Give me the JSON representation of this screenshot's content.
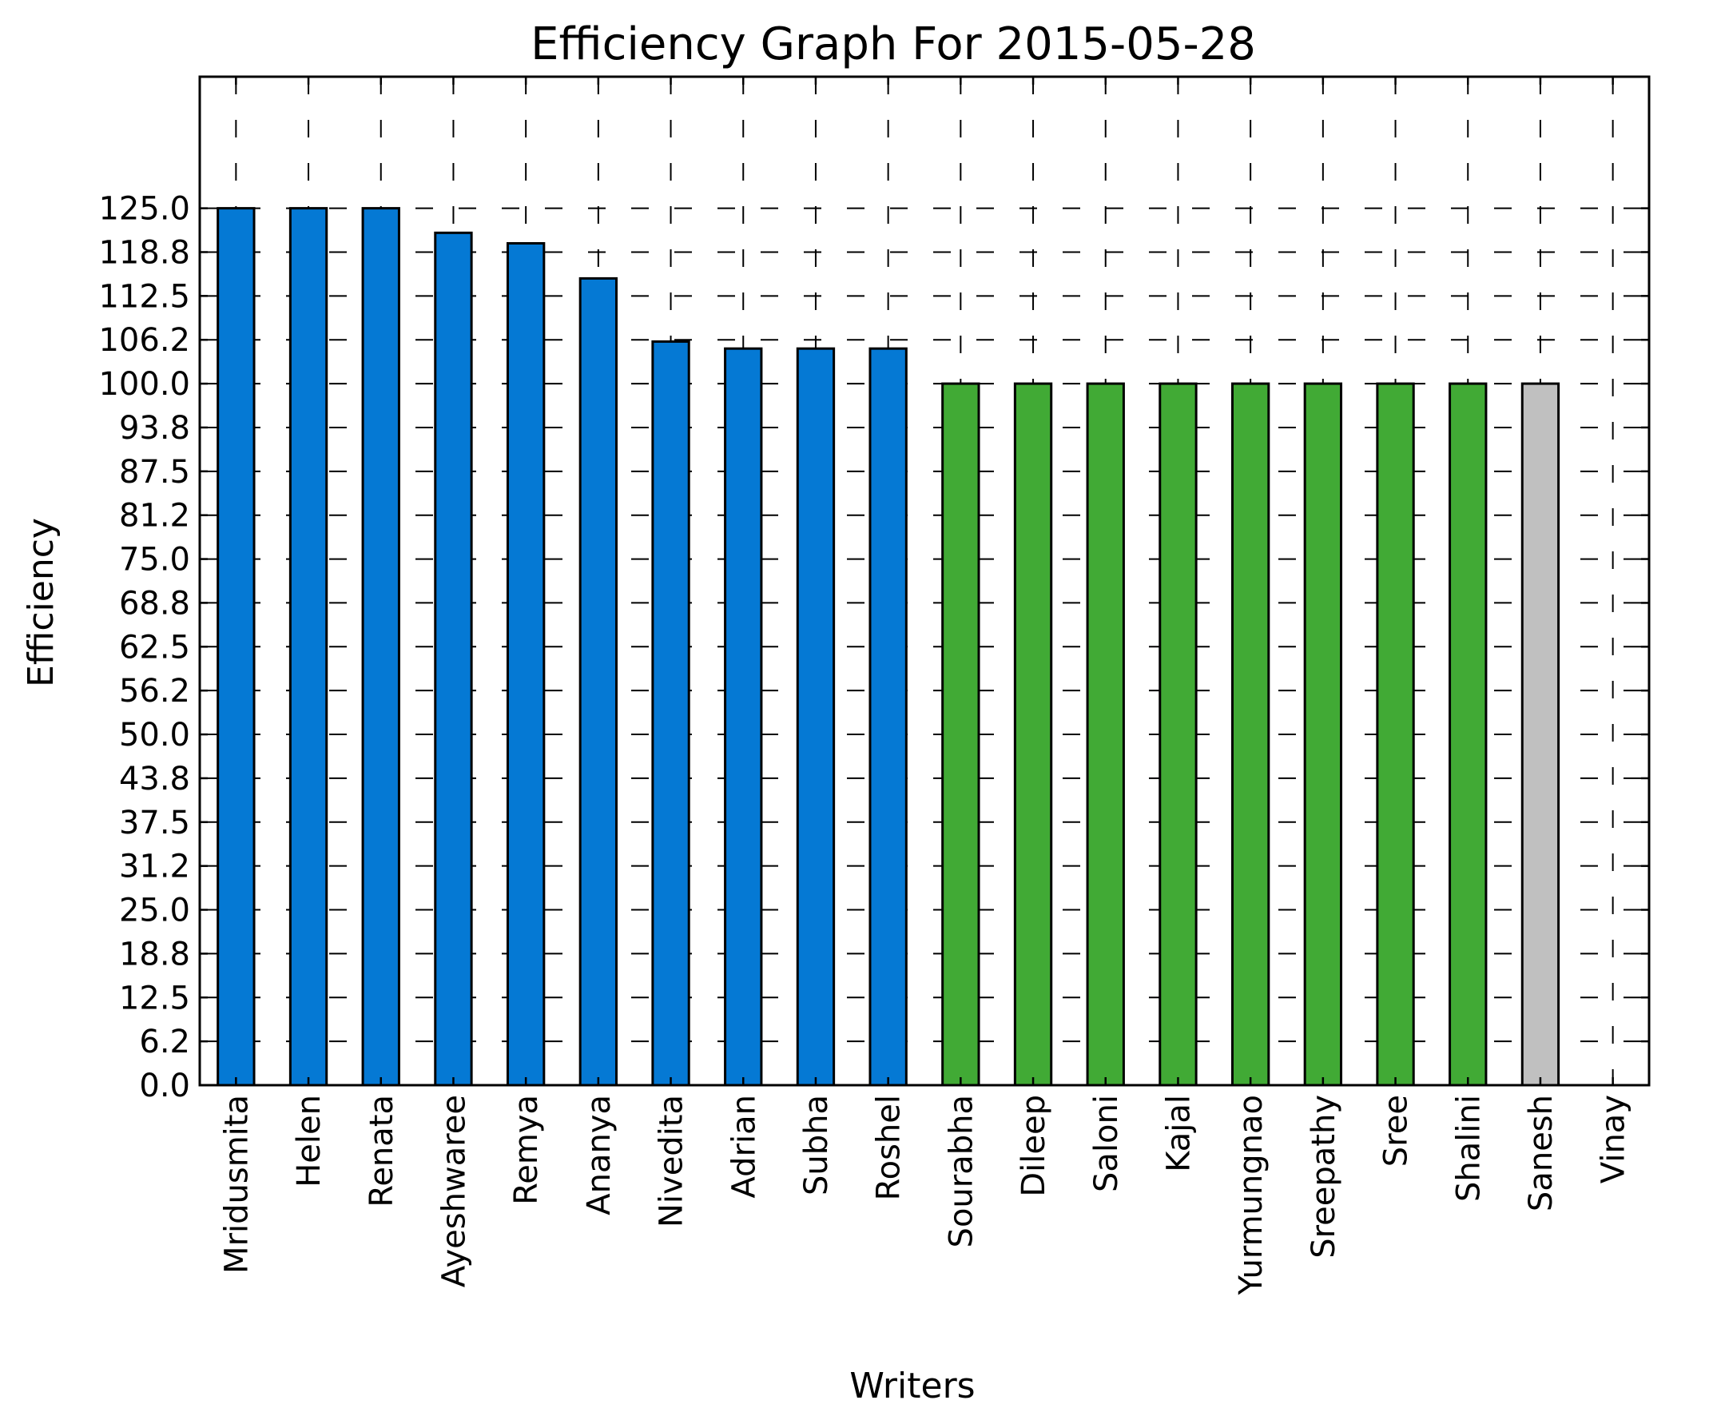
{
  "chart_data": {
    "type": "bar",
    "title": "Efficiency Graph For 2015-05-28",
    "xlabel": "Writers",
    "ylabel": "Efficiency",
    "categories": [
      "Mridusmita",
      "Helen",
      "Renata",
      "Ayeshwaree",
      "Remya",
      "Ananya",
      "Nivedita",
      "Adrian",
      "Subha",
      "Roshel",
      "Sourabha",
      "Dileep",
      "Saloni",
      "Kajal",
      "Yurmungnao",
      "Sreepathy",
      "Sree",
      "Shalini",
      "Sanesh",
      "Vinay"
    ],
    "values": [
      125,
      125,
      125,
      121.5,
      120,
      115,
      106,
      105,
      105,
      105,
      100,
      100,
      100,
      100,
      100,
      100,
      100,
      100,
      100,
      0
    ],
    "bar_colors": [
      "#0579d4",
      "#0579d4",
      "#0579d4",
      "#0579d4",
      "#0579d4",
      "#0579d4",
      "#0579d4",
      "#0579d4",
      "#0579d4",
      "#0579d4",
      "#41aa35",
      "#41aa35",
      "#41aa35",
      "#41aa35",
      "#41aa35",
      "#41aa35",
      "#41aa35",
      "#41aa35",
      "#c0c0c0",
      "#c0c0c0"
    ],
    "yticks": [
      "0.0",
      "6.2",
      "12.5",
      "18.8",
      "25.0",
      "31.2",
      "37.5",
      "43.8",
      "50.0",
      "56.2",
      "62.5",
      "68.8",
      "75.0",
      "81.2",
      "87.5",
      "93.8",
      "100.0",
      "106.2",
      "112.5",
      "118.8",
      "125.0"
    ],
    "ytick_step": 6.25,
    "ylim": [
      0,
      143.75
    ],
    "grid": true,
    "legend": "none"
  }
}
